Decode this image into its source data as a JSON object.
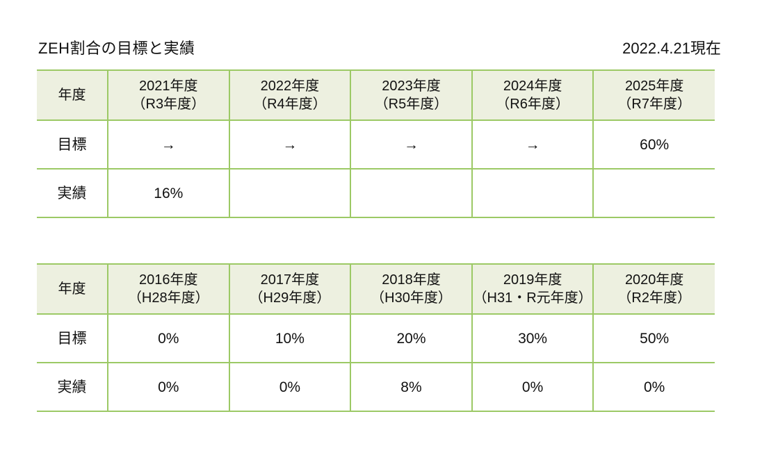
{
  "page": {
    "title": "ZEH割合の目標と実績",
    "date_label": "2022.4.21現在"
  },
  "colors": {
    "table_border": "#9cc965",
    "header_fill": "#edf0e0",
    "text": "#111111",
    "background": "#ffffff"
  },
  "tables": [
    {
      "name": "fy2021-2025",
      "corner_label": "年度",
      "columns": [
        "2021年度\n（R3年度）",
        "2022年度\n（R4年度）",
        "2023年度\n（R5年度）",
        "2024年度\n（R6年度）",
        "2025年度\n（R7年度）"
      ],
      "rows": [
        {
          "label": "目標",
          "values": [
            "→",
            "→",
            "→",
            "→",
            "60%"
          ]
        },
        {
          "label": "実績",
          "values": [
            "16%",
            "",
            "",
            "",
            ""
          ]
        }
      ]
    },
    {
      "name": "fy2016-2020",
      "corner_label": "年度",
      "columns": [
        "2016年度\n（H28年度）",
        "2017年度\n（H29年度）",
        "2018年度\n（H30年度）",
        "2019年度\n（H31・R元年度）",
        "2020年度\n（R2年度）"
      ],
      "rows": [
        {
          "label": "目標",
          "values": [
            "0%",
            "10%",
            "20%",
            "30%",
            "50%"
          ]
        },
        {
          "label": "実績",
          "values": [
            "0%",
            "0%",
            "8%",
            "0%",
            "0%"
          ]
        }
      ]
    }
  ]
}
